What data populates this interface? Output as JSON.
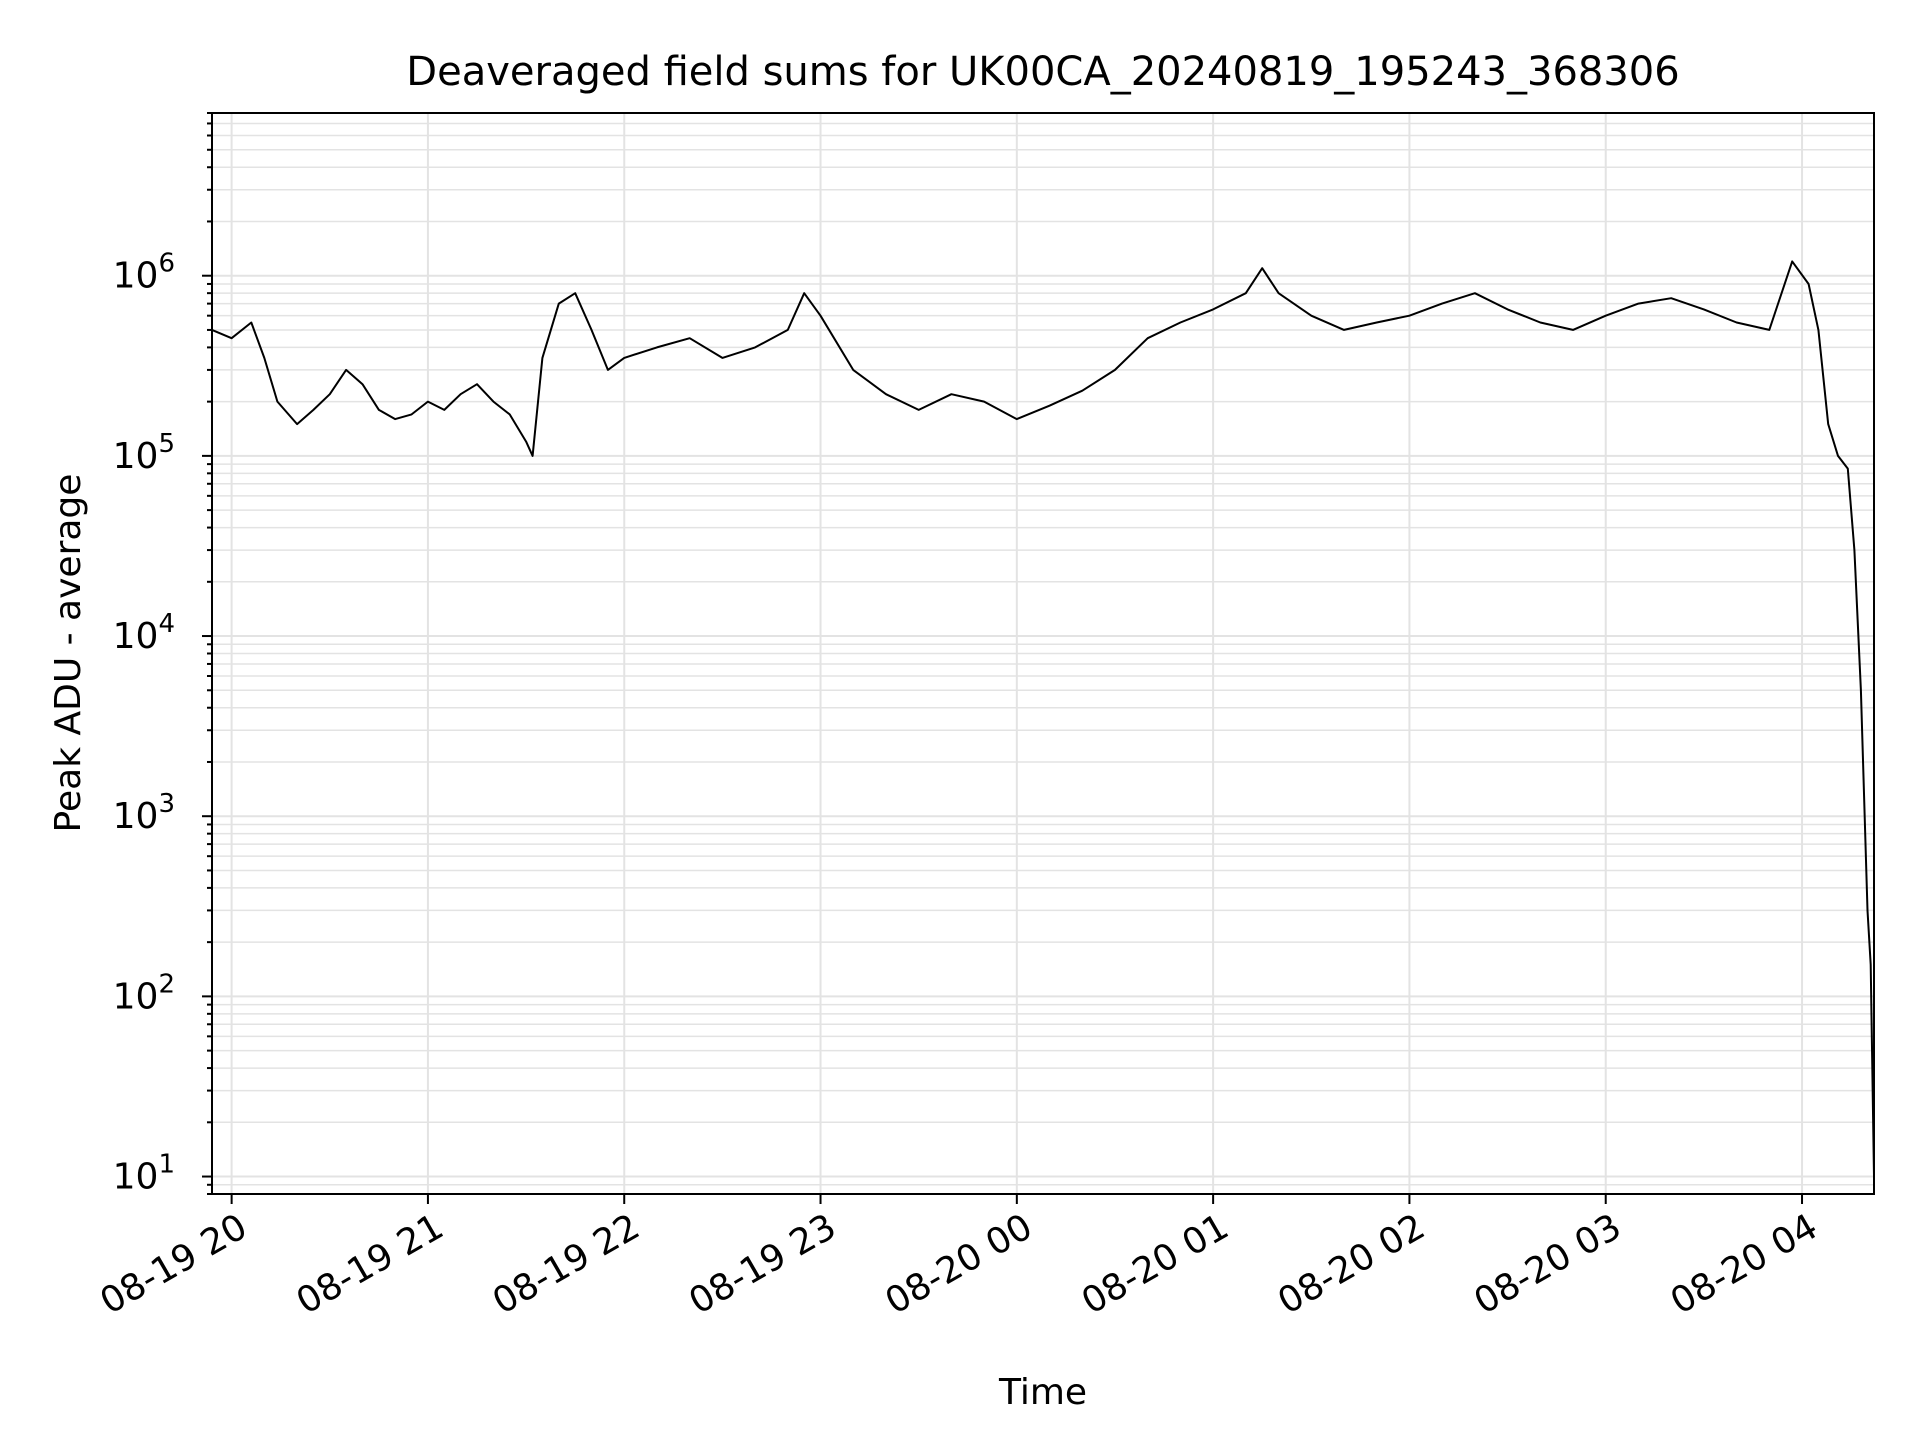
{
  "chart_data": {
    "type": "line",
    "title": "Deaveraged field sums for UK00CA_20240819_195243_368306",
    "xlabel": "Time",
    "ylabel": "Peak ADU - average",
    "yscale": "log",
    "ylim": [
      8,
      8000000
    ],
    "xlim": [
      "2024-08-19 19:54",
      "2024-08-20 04:22"
    ],
    "grid": true,
    "x_tick_labels": [
      "08-19 20",
      "08-19 21",
      "08-19 22",
      "08-19 23",
      "08-20 00",
      "08-20 01",
      "08-20 02",
      "08-20 03",
      "08-20 04"
    ],
    "y_tick_labels": [
      {
        "base": "10",
        "exp": "1"
      },
      {
        "base": "10",
        "exp": "2"
      },
      {
        "base": "10",
        "exp": "3"
      },
      {
        "base": "10",
        "exp": "4"
      },
      {
        "base": "10",
        "exp": "5"
      },
      {
        "base": "10",
        "exp": "6"
      }
    ],
    "line_color": "#000000",
    "grid_color": "#e3e3e3",
    "series": [
      {
        "x": [
          "2024-08-19 19:54",
          "2024-08-19 20:00",
          "2024-08-19 20:06",
          "2024-08-19 20:10",
          "2024-08-19 20:14",
          "2024-08-19 20:20",
          "2024-08-19 20:25",
          "2024-08-19 20:30",
          "2024-08-19 20:35",
          "2024-08-19 20:40",
          "2024-08-19 20:45",
          "2024-08-19 20:50",
          "2024-08-19 20:55",
          "2024-08-19 21:00",
          "2024-08-19 21:05",
          "2024-08-19 21:10",
          "2024-08-19 21:15",
          "2024-08-19 21:20",
          "2024-08-19 21:25",
          "2024-08-19 21:30",
          "2024-08-19 21:32",
          "2024-08-19 21:35",
          "2024-08-19 21:40",
          "2024-08-19 21:45",
          "2024-08-19 21:50",
          "2024-08-19 21:55",
          "2024-08-19 22:00",
          "2024-08-19 22:10",
          "2024-08-19 22:20",
          "2024-08-19 22:30",
          "2024-08-19 22:40",
          "2024-08-19 22:50",
          "2024-08-19 22:55",
          "2024-08-19 23:00",
          "2024-08-19 23:10",
          "2024-08-19 23:20",
          "2024-08-19 23:30",
          "2024-08-19 23:40",
          "2024-08-19 23:50",
          "2024-08-20 00:00",
          "2024-08-20 00:10",
          "2024-08-20 00:20",
          "2024-08-20 00:30",
          "2024-08-20 00:40",
          "2024-08-20 00:50",
          "2024-08-20 01:00",
          "2024-08-20 01:10",
          "2024-08-20 01:15",
          "2024-08-20 01:20",
          "2024-08-20 01:30",
          "2024-08-20 01:40",
          "2024-08-20 01:50",
          "2024-08-20 02:00",
          "2024-08-20 02:10",
          "2024-08-20 02:20",
          "2024-08-20 02:30",
          "2024-08-20 02:40",
          "2024-08-20 02:50",
          "2024-08-20 03:00",
          "2024-08-20 03:10",
          "2024-08-20 03:20",
          "2024-08-20 03:30",
          "2024-08-20 03:40",
          "2024-08-20 03:50",
          "2024-08-20 03:57",
          "2024-08-20 04:02",
          "2024-08-20 04:05",
          "2024-08-20 04:08",
          "2024-08-20 04:11",
          "2024-08-20 04:14",
          "2024-08-20 04:16",
          "2024-08-20 04:18",
          "2024-08-20 04:20",
          "2024-08-20 04:21",
          "2024-08-20 04:22"
        ],
        "values": [
          500000,
          450000,
          550000,
          350000,
          200000,
          150000,
          180000,
          220000,
          300000,
          250000,
          180000,
          160000,
          170000,
          200000,
          180000,
          220000,
          250000,
          200000,
          170000,
          120000,
          100000,
          350000,
          700000,
          800000,
          500000,
          300000,
          350000,
          400000,
          450000,
          350000,
          400000,
          500000,
          800000,
          600000,
          300000,
          220000,
          180000,
          220000,
          200000,
          160000,
          190000,
          230000,
          300000,
          450000,
          550000,
          650000,
          800000,
          1100000,
          800000,
          600000,
          500000,
          550000,
          600000,
          700000,
          800000,
          650000,
          550000,
          500000,
          600000,
          700000,
          750000,
          650000,
          550000,
          500000,
          1200000,
          900000,
          500000,
          150000,
          100000,
          85000,
          30000,
          5000,
          300,
          150,
          10
        ]
      }
    ]
  }
}
